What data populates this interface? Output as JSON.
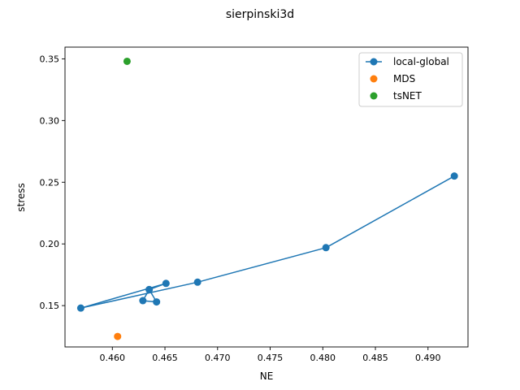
{
  "chart_data": {
    "type": "scatter",
    "title": "sierpinski3d",
    "xlabel": "NE",
    "ylabel": "stress",
    "xlim": [
      0.4555,
      0.4938
    ],
    "ylim": [
      0.1165,
      0.3595
    ],
    "xticks": [
      0.46,
      0.465,
      0.47,
      0.475,
      0.48,
      0.485,
      0.49
    ],
    "xtick_labels": [
      "0.460",
      "0.465",
      "0.470",
      "0.475",
      "0.480",
      "0.485",
      "0.490"
    ],
    "yticks": [
      0.15,
      0.2,
      0.25,
      0.3,
      0.35
    ],
    "ytick_labels": [
      "0.15",
      "0.20",
      "0.25",
      "0.30",
      "0.35"
    ],
    "grid": false,
    "legend_position": "top-right",
    "series": [
      {
        "name": "local-global",
        "color": "#1f77b4",
        "mode": "line+markers",
        "points": [
          [
            0.4925,
            0.255
          ],
          [
            0.4803,
            0.197
          ],
          [
            0.4681,
            0.169
          ],
          [
            0.457,
            0.148
          ],
          [
            0.4651,
            0.168
          ],
          [
            0.4635,
            0.163
          ],
          [
            0.4642,
            0.153
          ],
          [
            0.4629,
            0.154
          ],
          [
            0.4635,
            0.163
          ]
        ]
      },
      {
        "name": "MDS",
        "color": "#ff7f0e",
        "mode": "markers",
        "points": [
          [
            0.4605,
            0.125
          ]
        ]
      },
      {
        "name": "tsNET",
        "color": "#2ca02c",
        "mode": "markers",
        "points": [
          [
            0.4614,
            0.348
          ]
        ]
      }
    ]
  }
}
